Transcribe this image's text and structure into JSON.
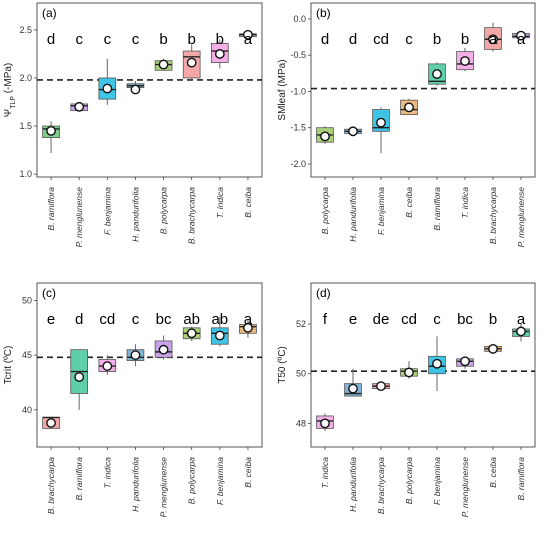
{
  "colors": {
    "green": "#7fce8c",
    "lavender": "#d7a8ee",
    "blue": "#3ec4e4",
    "steel": "#7fb6d6",
    "olive": "#a9d07a",
    "pink": "#f3a7a7",
    "magenta": "#f4aee8",
    "gray": "#b8b8b8",
    "tan": "#e9b97f",
    "mint": "#5fcfaa",
    "purple": "#c9a3e9"
  },
  "chart_data": [
    {
      "type": "box",
      "tag": "(a)",
      "ylabel": "Ψ",
      "ylabel_sub": "TLP",
      "ylabel_suffix": " (-MPa)",
      "ylim": [
        0.97,
        2.78
      ],
      "yticks": [
        "1.0",
        "1.5",
        "2.0",
        "2.5"
      ],
      "ytick_values": [
        1.0,
        1.5,
        2.0,
        2.5
      ],
      "reference_line": 1.98,
      "categories": [
        "B. ramiflora",
        "P. menglunense",
        "F. benjamina",
        "H. pandurifolia",
        "B. polycarpa",
        "B. brachycarpa",
        "T. indica",
        "B. ceiba"
      ],
      "letters": [
        "d",
        "c",
        "c",
        "c",
        "b",
        "b",
        "b",
        "a"
      ],
      "boxes": [
        {
          "min": 1.22,
          "q1": 1.38,
          "median": 1.47,
          "q3": 1.5,
          "max": 1.55,
          "mean": 1.45,
          "color": "green"
        },
        {
          "min": 1.66,
          "q1": 1.66,
          "median": 1.71,
          "q3": 1.73,
          "max": 1.74,
          "mean": 1.7,
          "color": "lavender"
        },
        {
          "min": 1.72,
          "q1": 1.78,
          "median": 1.88,
          "q3": 2.0,
          "max": 2.2,
          "mean": 1.89,
          "color": "blue"
        },
        {
          "min": 1.86,
          "q1": 1.9,
          "median": 1.92,
          "q3": 1.94,
          "max": 1.97,
          "mean": 1.88,
          "color": "steel"
        },
        {
          "min": 2.08,
          "q1": 2.08,
          "median": 2.14,
          "q3": 2.18,
          "max": 2.2,
          "mean": 2.14,
          "color": "olive"
        },
        {
          "min": 1.98,
          "q1": 2.0,
          "median": 2.22,
          "q3": 2.28,
          "max": 2.35,
          "mean": 2.16,
          "color": "pink"
        },
        {
          "min": 2.1,
          "q1": 2.16,
          "median": 2.28,
          "q3": 2.36,
          "max": 2.4,
          "mean": 2.25,
          "color": "magenta"
        },
        {
          "min": 2.43,
          "q1": 2.43,
          "median": 2.45,
          "q3": 2.46,
          "max": 2.47,
          "mean": 2.45,
          "color": "gray"
        }
      ]
    },
    {
      "type": "box",
      "tag": "(b)",
      "ylabel": "SMleaf (MPa)",
      "ylabel_sub": "",
      "ylabel_suffix": "",
      "ylim": [
        -2.18,
        0.22
      ],
      "yticks": [
        "0.0",
        "-0.5",
        "-1.0",
        "-1.5",
        "-2.0"
      ],
      "ytick_values": [
        0.0,
        -0.5,
        -1.0,
        -1.5,
        -2.0
      ],
      "reference_line": -0.96,
      "categories": [
        "B. polycarpa",
        "H. pandurifolia",
        "F. benjamina",
        "B. ceiba",
        "B. ramiflora",
        "T. indica",
        "B. brachycarpa",
        "P. menglunense"
      ],
      "letters": [
        "d",
        "d",
        "cd",
        "c",
        "b",
        "b",
        "a",
        "a"
      ],
      "boxes": [
        {
          "min": -1.72,
          "q1": -1.7,
          "median": -1.6,
          "q3": -1.5,
          "max": -1.48,
          "mean": -1.62,
          "color": "olive"
        },
        {
          "min": -1.6,
          "q1": -1.58,
          "median": -1.55,
          "q3": -1.52,
          "max": -1.5,
          "mean": -1.55,
          "color": "steel"
        },
        {
          "min": -1.85,
          "q1": -1.55,
          "median": -1.5,
          "q3": -1.25,
          "max": -1.22,
          "mean": -1.43,
          "color": "blue"
        },
        {
          "min": -1.32,
          "q1": -1.32,
          "median": -1.25,
          "q3": -1.12,
          "max": -1.1,
          "mean": -1.22,
          "color": "tan"
        },
        {
          "min": -0.92,
          "q1": -0.9,
          "median": -0.86,
          "q3": -0.62,
          "max": -0.6,
          "mean": -0.76,
          "color": "mint"
        },
        {
          "min": -0.72,
          "q1": -0.7,
          "median": -0.62,
          "q3": -0.45,
          "max": -0.4,
          "mean": -0.58,
          "color": "magenta"
        },
        {
          "min": -0.45,
          "q1": -0.42,
          "median": -0.28,
          "q3": -0.12,
          "max": -0.05,
          "mean": -0.28,
          "color": "pink"
        },
        {
          "min": -0.28,
          "q1": -0.26,
          "median": -0.24,
          "q3": -0.2,
          "max": -0.19,
          "mean": -0.23,
          "color": "purple"
        }
      ]
    },
    {
      "type": "box",
      "tag": "(c)",
      "ylabel": "Tcrit (ºC)",
      "ylabel_sub": "",
      "ylabel_suffix": "",
      "ylim": [
        36.6,
        51.6
      ],
      "yticks": [
        "40",
        "45",
        "50"
      ],
      "ytick_values": [
        40,
        45,
        50
      ],
      "reference_line": 44.8,
      "categories": [
        "B. brachycarpa",
        "B. ramiflora",
        "T. indica",
        "H. pandurifolia",
        "P. menglunense",
        "B. polycarpa",
        "F. benjamina",
        "B. ceiba"
      ],
      "letters": [
        "e",
        "d",
        "cd",
        "c",
        "bc",
        "ab",
        "ab",
        "a"
      ],
      "boxes": [
        {
          "min": 38.3,
          "q1": 38.3,
          "median": 39.3,
          "q3": 39.3,
          "max": 39.3,
          "mean": 38.8,
          "color": "pink"
        },
        {
          "min": 40.0,
          "q1": 41.5,
          "median": 43.5,
          "q3": 45.5,
          "max": 45.5,
          "mean": 43.0,
          "color": "mint"
        },
        {
          "min": 43.2,
          "q1": 43.5,
          "median": 44.0,
          "q3": 44.6,
          "max": 45.0,
          "mean": 44.0,
          "color": "magenta"
        },
        {
          "min": 44.0,
          "q1": 44.5,
          "median": 44.8,
          "q3": 45.5,
          "max": 46.0,
          "mean": 45.0,
          "color": "steel"
        },
        {
          "min": 44.6,
          "q1": 44.8,
          "median": 45.3,
          "q3": 46.3,
          "max": 46.8,
          "mean": 45.5,
          "color": "purple"
        },
        {
          "min": 46.3,
          "q1": 46.5,
          "median": 47.0,
          "q3": 47.5,
          "max": 47.6,
          "mean": 47.0,
          "color": "olive"
        },
        {
          "min": 45.8,
          "q1": 46.0,
          "median": 47.0,
          "q3": 47.5,
          "max": 48.5,
          "mean": 46.8,
          "color": "blue"
        },
        {
          "min": 46.6,
          "q1": 47.0,
          "median": 47.6,
          "q3": 47.8,
          "max": 48.3,
          "mean": 47.5,
          "color": "tan"
        }
      ]
    },
    {
      "type": "box",
      "tag": "(d)",
      "ylabel": "T50 (ºC)",
      "ylabel_sub": "",
      "ylabel_suffix": "",
      "ylim": [
        47.05,
        53.65
      ],
      "yticks": [
        "48",
        "50",
        "52"
      ],
      "ytick_values": [
        48,
        50,
        52
      ],
      "reference_line": 50.1,
      "categories": [
        "T. indica",
        "H. pandurifolia",
        "B. brachycarpa",
        "B. polycarpa",
        "F. benjamina",
        "P. menglunense",
        "B. ceiba",
        "B. ramiflora"
      ],
      "letters": [
        "f",
        "e",
        "de",
        "cd",
        "c",
        "bc",
        "b",
        "a"
      ],
      "boxes": [
        {
          "min": 47.7,
          "q1": 47.8,
          "median": 48.1,
          "q3": 48.3,
          "max": 48.4,
          "mean": 48.0,
          "color": "magenta"
        },
        {
          "min": 49.1,
          "q1": 49.1,
          "median": 49.2,
          "q3": 49.6,
          "max": 50.2,
          "mean": 49.4,
          "color": "steel"
        },
        {
          "min": 49.35,
          "q1": 49.4,
          "median": 49.5,
          "q3": 49.6,
          "max": 49.65,
          "mean": 49.5,
          "color": "pink"
        },
        {
          "min": 49.8,
          "q1": 49.9,
          "median": 50.1,
          "q3": 50.2,
          "max": 50.5,
          "mean": 50.05,
          "color": "olive"
        },
        {
          "min": 49.3,
          "q1": 50.0,
          "median": 50.3,
          "q3": 50.7,
          "max": 51.5,
          "mean": 50.4,
          "color": "blue"
        },
        {
          "min": 50.2,
          "q1": 50.3,
          "median": 50.5,
          "q3": 50.6,
          "max": 50.7,
          "mean": 50.5,
          "color": "purple"
        },
        {
          "min": 50.8,
          "q1": 50.9,
          "median": 51.0,
          "q3": 51.1,
          "max": 51.2,
          "mean": 51.0,
          "color": "tan"
        },
        {
          "min": 51.3,
          "q1": 51.5,
          "median": 51.7,
          "q3": 51.8,
          "max": 52.0,
          "mean": 51.7,
          "color": "mint"
        }
      ]
    }
  ]
}
